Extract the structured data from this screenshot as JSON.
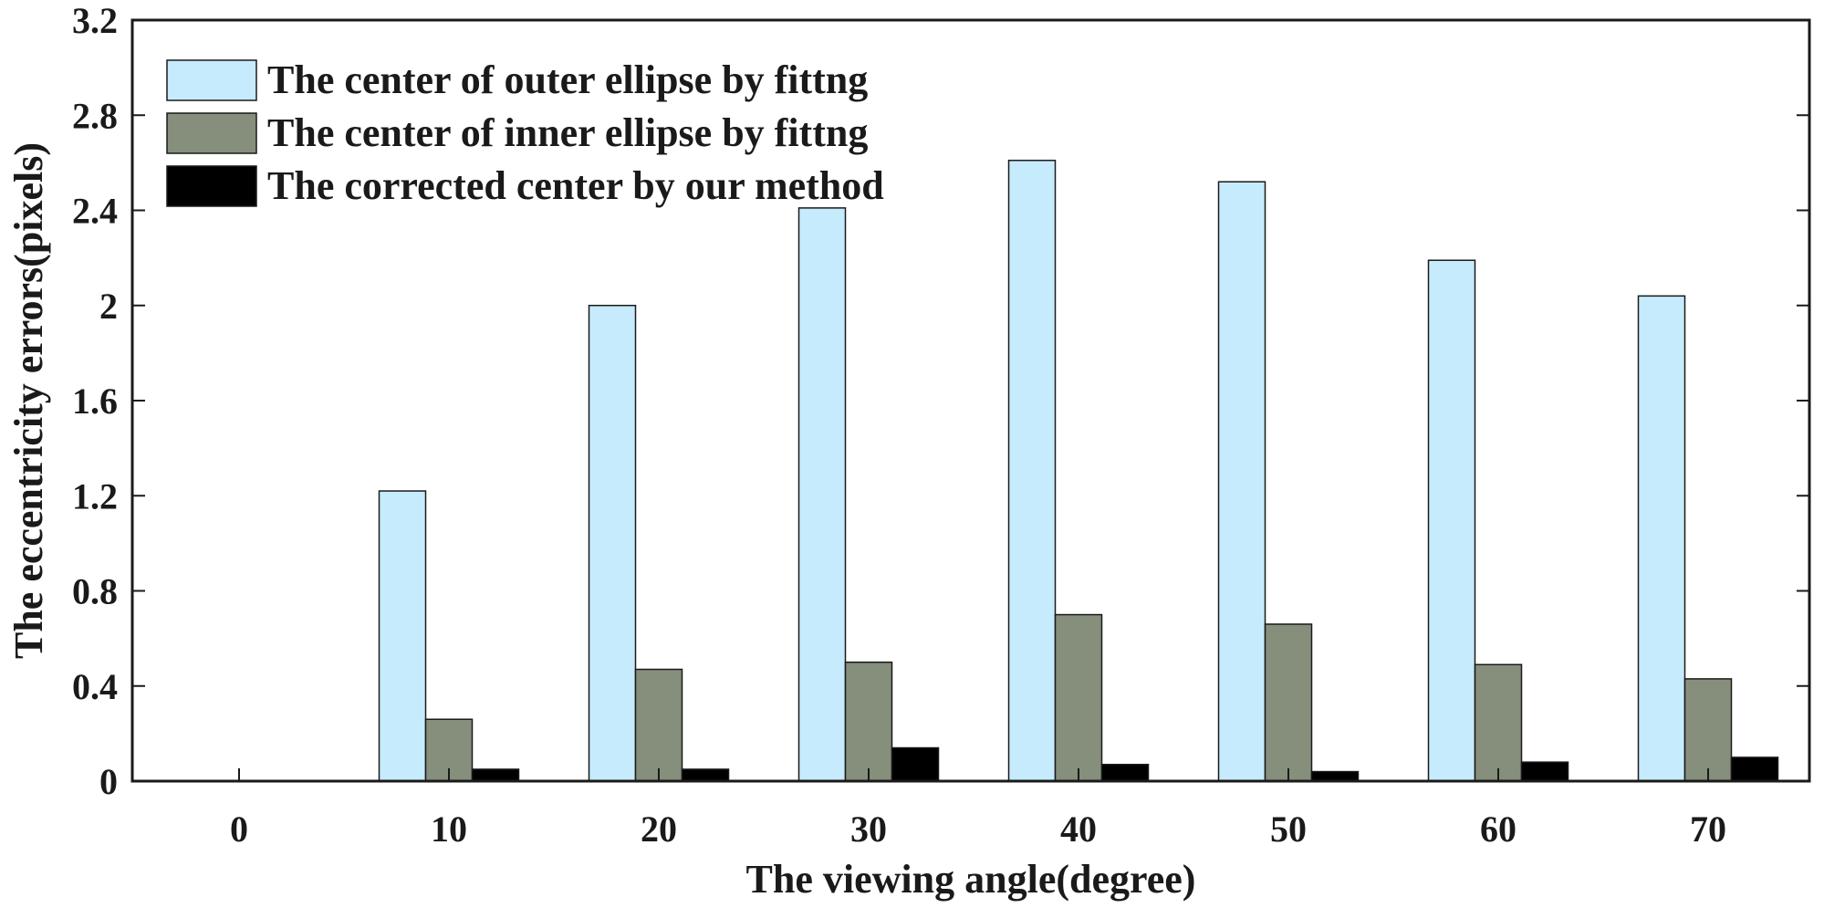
{
  "chart_data": {
    "type": "bar",
    "xlabel": "The viewing angle(degree)",
    "ylabel": "The eccentricity errors(pixels)",
    "categories": [
      "0",
      "10",
      "20",
      "30",
      "40",
      "50",
      "60",
      "70"
    ],
    "ylim": [
      0,
      3.2
    ],
    "yticks": [
      "0",
      "0.4",
      "0.8",
      "1.2",
      "1.6",
      "2",
      "2.4",
      "2.8",
      "3.2"
    ],
    "legend_position": "top-left",
    "grid": false,
    "series": [
      {
        "name": "The center of outer ellipse by fittng",
        "color": "#c6ebfc",
        "values": [
          0,
          1.22,
          2.0,
          2.41,
          2.61,
          2.52,
          2.19,
          2.04
        ]
      },
      {
        "name": "The center of inner ellipse by fittng",
        "color": "#858f7c",
        "values": [
          0,
          0.26,
          0.47,
          0.5,
          0.7,
          0.66,
          0.49,
          0.43
        ]
      },
      {
        "name": "The corrected center by our method",
        "color": "#000000",
        "values": [
          0,
          0.05,
          0.05,
          0.14,
          0.07,
          0.04,
          0.08,
          0.1
        ]
      }
    ]
  }
}
